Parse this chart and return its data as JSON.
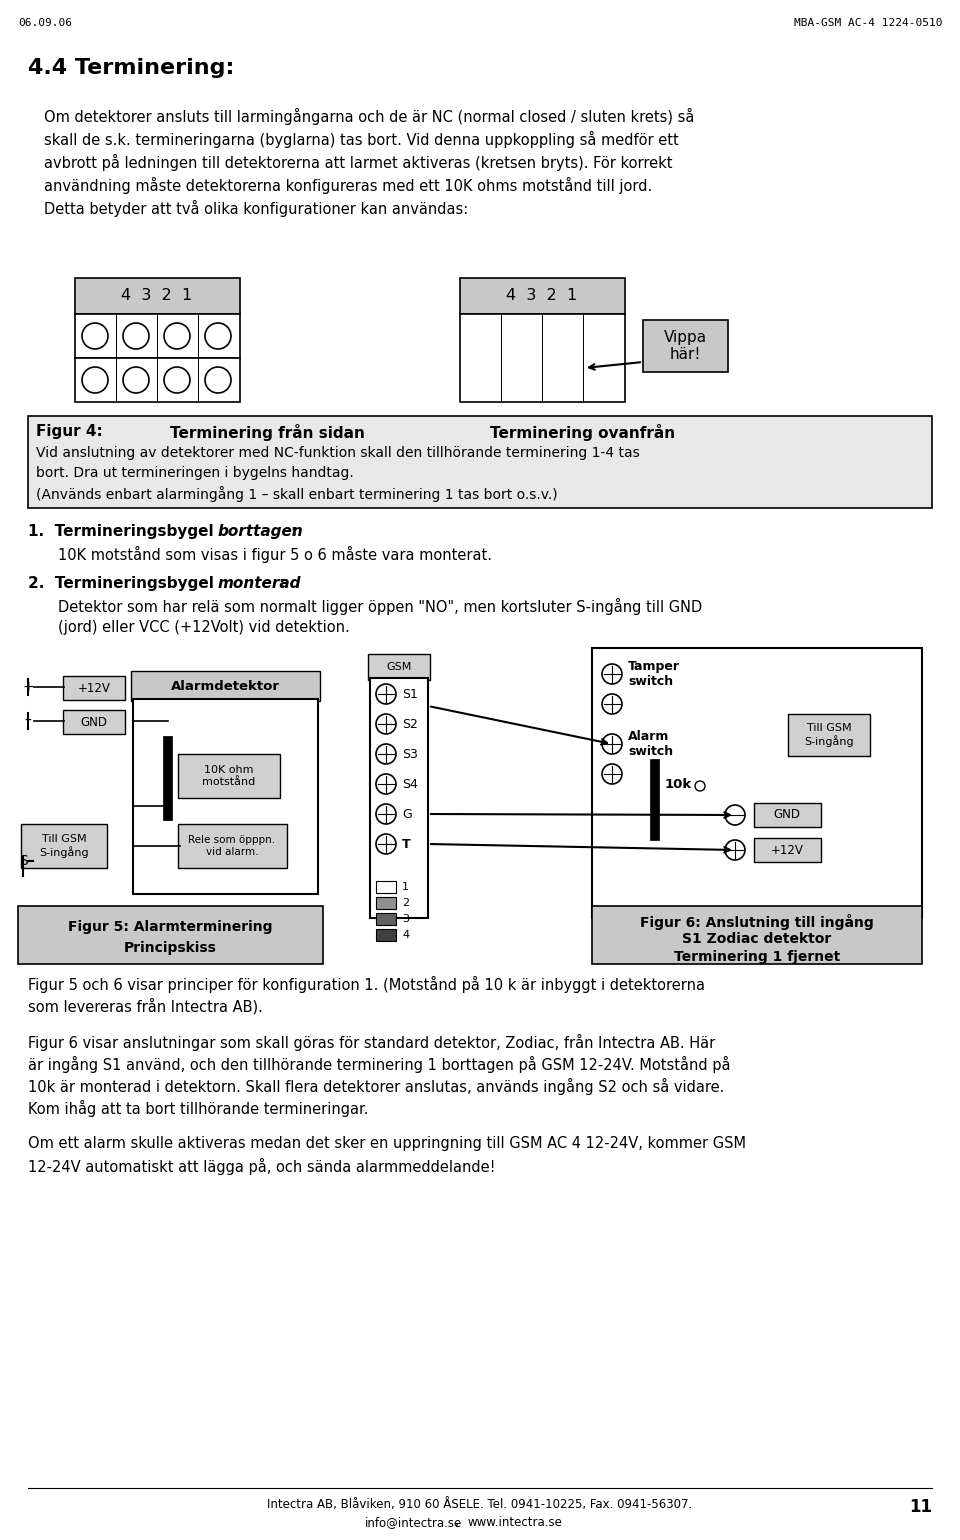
{
  "bg_color": "#ffffff",
  "header_left": "06.09.06",
  "header_right": "MBA-GSM AC-4 1224-0510",
  "title": "4.4 Terminering:",
  "para1_lines": [
    "Om detektorer ansluts till larmingångarna och de är NC (normal closed / sluten krets) så",
    "skall de s.k. termineringarna (byglarna) tas bort. Vid denna uppkoppling så medför ett",
    "avbrott på ledningen till detektorerna att larmet aktiveras (kretsen bryts). För korrekt",
    "användning måste detektorerna konfigureras med ett 10K ohms motstånd till jord.",
    "Detta betyder att två olika konfigurationer kan användas:"
  ],
  "label_4321": "4  3  2  1",
  "vippa_text": "Vippa\nhär!",
  "fig4_bold": "Figur 4:",
  "fig4_col1": "Terminering från sidan",
  "fig4_col2": "Terminering ovanfrån",
  "fig4_line1": "Vid anslutning av detektorer med NC-funktion skall den tillhörande terminering 1-4 tas",
  "fig4_line2": "bort. Dra ut termineringen i bygelns handtag.",
  "fig4_line3": "(Används enbart alarmingång 1 – skall enbart terminering 1 tas bort o.s.v.)",
  "b1_main": "1.  Termineringsbygel ",
  "b1_italic": "borttagen",
  "b1_colon": ":",
  "b1_text": "10K motstånd som visas i figur 5 o 6 måste vara monterat.",
  "b2_main": "2.  Termineringsbygel ",
  "b2_italic": "monterad",
  "b2_colon": ":",
  "b2_line1": "Detektor som har relä som normalt ligger öppen \"NO\", men kortsluter S-ingång till GND",
  "b2_line2": "(jord) eller VCC (+12Volt) vid detektion.",
  "fig5_line1": "Figur 5: Alarmterminering",
  "fig5_line2": "Principskiss",
  "fig6_line1": "Figur 6: Anslutning till ingång",
  "fig6_line2": "S1 Zodiac detektor",
  "fig6_line3": "Terminering 1 fjernet",
  "gsm_label": "GSM",
  "alarm_label": "Alarmdetektor",
  "v12_label": "+12V",
  "gnd_label": "GND",
  "resistor_label": "10K ohm\nmotstånd",
  "rele_label": "Rele som öpppn.\nvid alarm.",
  "till_gsm_label": "Till GSM\nS-ingång",
  "tamper_label": "Tamper\nswitch",
  "alarm_sw_label": "Alarm\nswitch",
  "tenk_label": "10k",
  "para2_lines": [
    "Figur 5 och 6 visar principer för konfiguration 1. (Motstånd på 10 k är inbyggt i detektorerna",
    "som levereras från Intectra AB)."
  ],
  "para3_lines": [
    "Figur 6 visar anslutningar som skall göras för standard detektor, Zodiac, från Intectra AB. Här",
    "är ingång S1 använd, och den tillhörande terminering 1 borttagen på GSM 12-24V. Motstånd på",
    "10k är monterad i detektorn. Skall flera detektorer anslutas, används ingång S2 och så vidare.",
    "Kom ihåg att ta bort tillhörande termineringar."
  ],
  "para4_lines": [
    "Om ett alarm skulle aktiveras medan det sker en uppringning till GSM AC 4 12-24V, kommer GSM",
    "12-24V automatiskt att lägga på, och sända alarmmeddelande!"
  ],
  "footer_line1": "Intectra AB, Blåviken, 910 60 ÅSELE. Tel. 0941-10225, Fax. 0941-56307.",
  "footer_email": "info@intectra.se",
  "footer_sep": ", ",
  "footer_web": "www.intectra.se",
  "footer_page": "11",
  "gsm_inputs": [
    "S1",
    "S2",
    "S3",
    "S4",
    "G",
    "T"
  ],
  "legend_colors": [
    "#ffffff",
    "#909090",
    "#606060",
    "#404040"
  ],
  "legend_labels": [
    "1",
    "2",
    "3",
    "4"
  ]
}
